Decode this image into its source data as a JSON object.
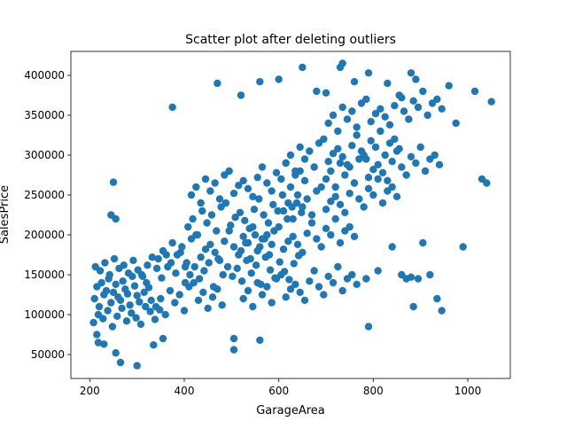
{
  "chart_data": {
    "type": "scatter",
    "title": "Scatter plot after deleting outliers",
    "xlabel": "GarageArea",
    "ylabel": "SalesPrice",
    "xlim": [
      160,
      1090
    ],
    "ylim": [
      20000,
      430000
    ],
    "x_ticks": [
      200,
      400,
      600,
      800,
      1000
    ],
    "y_ticks": [
      50000,
      100000,
      150000,
      200000,
      250000,
      300000,
      350000,
      400000
    ],
    "x_tick_labels": [
      "200",
      "400",
      "600",
      "800",
      "1000"
    ],
    "y_tick_labels": [
      "50000",
      "100000",
      "150000",
      "200000",
      "250000",
      "300000",
      "350000",
      "400000"
    ],
    "marker_color": "#1f77b4",
    "grid": false,
    "legend": "none",
    "x": [
      210,
      215,
      220,
      225,
      230,
      235,
      240,
      245,
      250,
      255,
      260,
      265,
      270,
      275,
      280,
      285,
      290,
      295,
      300,
      305,
      310,
      315,
      320,
      325,
      330,
      208,
      218,
      228,
      238,
      248,
      258,
      268,
      278,
      288,
      298,
      308,
      318,
      328,
      338,
      348,
      212,
      222,
      232,
      242,
      252,
      262,
      272,
      282,
      292,
      302,
      312,
      322,
      332,
      342,
      352,
      362,
      372,
      382,
      392,
      402,
      340,
      350,
      360,
      370,
      380,
      390,
      400,
      410,
      420,
      430,
      440,
      450,
      460,
      470,
      480,
      345,
      355,
      365,
      375,
      385,
      395,
      405,
      415,
      425,
      435,
      445,
      455,
      465,
      475,
      485,
      495,
      505,
      515,
      525,
      535,
      545,
      555,
      565,
      575,
      585,
      402,
      412,
      422,
      432,
      442,
      452,
      462,
      472,
      482,
      492,
      502,
      512,
      522,
      532,
      542,
      552,
      562,
      572,
      582,
      592,
      602,
      612,
      622,
      632,
      642,
      408,
      418,
      428,
      438,
      448,
      458,
      468,
      478,
      488,
      498,
      508,
      518,
      528,
      538,
      548,
      558,
      568,
      578,
      588,
      598,
      608,
      618,
      628,
      638,
      648,
      415,
      425,
      435,
      445,
      455,
      465,
      475,
      485,
      495,
      505,
      515,
      525,
      535,
      545,
      555,
      565,
      575,
      585,
      595,
      605,
      615,
      625,
      635,
      645,
      655,
      520,
      530,
      540,
      550,
      560,
      570,
      580,
      590,
      600,
      610,
      620,
      630,
      640,
      650,
      660,
      670,
      680,
      690,
      700,
      710,
      720,
      730,
      740,
      750,
      760,
      525,
      535,
      545,
      555,
      565,
      575,
      585,
      595,
      605,
      615,
      625,
      635,
      645,
      655,
      665,
      675,
      685,
      695,
      705,
      715,
      725,
      735,
      745,
      755,
      765,
      610,
      620,
      630,
      640,
      650,
      660,
      670,
      680,
      690,
      700,
      710,
      720,
      730,
      740,
      750,
      760,
      770,
      780,
      790,
      800,
      810,
      820,
      830,
      840,
      850,
      615,
      625,
      635,
      645,
      655,
      665,
      675,
      685,
      695,
      705,
      715,
      725,
      735,
      745,
      755,
      765,
      775,
      785,
      795,
      805,
      815,
      825,
      835,
      845,
      855,
      700,
      710,
      720,
      730,
      740,
      750,
      760,
      770,
      780,
      790,
      800,
      810,
      820,
      830,
      840,
      850,
      860,
      870,
      880,
      890,
      900,
      910,
      920,
      930,
      940,
      705,
      715,
      725,
      735,
      745,
      755,
      765,
      775,
      785,
      795,
      805,
      815,
      825,
      835,
      845,
      855,
      865,
      875,
      885,
      895,
      905,
      915,
      925,
      935,
      945,
      250,
      265,
      375,
      505,
      735,
      730,
      790,
      885,
      890,
      870,
      860,
      840,
      960,
      1015,
      1050,
      975,
      1030,
      1040,
      990,
      945,
      935,
      920,
      905,
      895,
      880,
      470,
      520,
      560,
      600,
      650,
      680,
      700,
      760,
      790,
      830,
      860,
      880,
      505,
      560,
      300,
      335,
      355,
      245,
      255,
      785,
      810,
      230,
      215,
      218,
      255
    ],
    "y": [
      120000,
      135000,
      110000,
      140000,
      125000,
      130000,
      145000,
      115000,
      128000,
      138000,
      122000,
      118000,
      142000,
      132000,
      126000,
      112000,
      148000,
      136000,
      124000,
      116000,
      150000,
      128000,
      140000,
      134000,
      118000,
      90000,
      100000,
      95000,
      105000,
      85000,
      98000,
      108000,
      92000,
      102000,
      96000,
      88000,
      110000,
      104000,
      94000,
      106000,
      160000,
      155000,
      165000,
      150000,
      170000,
      158000,
      162000,
      152000,
      168000,
      156000,
      148000,
      162000,
      172000,
      158000,
      146000,
      175000,
      165000,
      152000,
      178000,
      160000,
      110000,
      120000,
      100000,
      130000,
      115000,
      125000,
      105000,
      135000,
      140000,
      118000,
      128000,
      108000,
      122000,
      132000,
      112000,
      170000,
      180000,
      160000,
      190000,
      175000,
      185000,
      165000,
      195000,
      200000,
      172000,
      182000,
      188000,
      178000,
      168000,
      192000,
      205000,
      185000,
      175000,
      198000,
      190000,
      210000,
      180000,
      195000,
      200000,
      188000,
      140000,
      150000,
      160000,
      145000,
      155000,
      165000,
      135000,
      170000,
      150000,
      160000,
      148000,
      158000,
      142000,
      168000,
      152000,
      162000,
      138000,
      172000,
      156000,
      146000,
      166000,
      154000,
      144000,
      164000,
      174000,
      210000,
      220000,
      200000,
      230000,
      215000,
      225000,
      205000,
      235000,
      240000,
      212000,
      222000,
      228000,
      218000,
      208000,
      232000,
      245000,
      225000,
      215000,
      238000,
      230000,
      250000,
      220000,
      235000,
      240000,
      228000,
      250000,
      260000,
      240000,
      270000,
      255000,
      265000,
      245000,
      275000,
      280000,
      252000,
      262000,
      268000,
      258000,
      248000,
      272000,
      285000,
      265000,
      255000,
      278000,
      270000,
      290000,
      260000,
      275000,
      280000,
      268000,
      180000,
      190000,
      170000,
      200000,
      185000,
      195000,
      175000,
      205000,
      210000,
      182000,
      192000,
      198000,
      188000,
      178000,
      202000,
      215000,
      195000,
      185000,
      208000,
      200000,
      220000,
      190000,
      205000,
      210000,
      198000,
      120000,
      130000,
      110000,
      140000,
      125000,
      135000,
      115000,
      145000,
      150000,
      122000,
      132000,
      138000,
      128000,
      118000,
      142000,
      155000,
      135000,
      125000,
      148000,
      140000,
      160000,
      130000,
      145000,
      150000,
      138000,
      230000,
      240000,
      220000,
      250000,
      235000,
      245000,
      225000,
      255000,
      260000,
      232000,
      242000,
      248000,
      238000,
      228000,
      252000,
      265000,
      245000,
      235000,
      258000,
      250000,
      270000,
      240000,
      255000,
      260000,
      248000,
      290000,
      300000,
      280000,
      310000,
      295000,
      305000,
      285000,
      315000,
      320000,
      292000,
      302000,
      308000,
      298000,
      288000,
      312000,
      325000,
      305000,
      295000,
      318000,
      310000,
      330000,
      300000,
      315000,
      320000,
      308000,
      270000,
      280000,
      260000,
      290000,
      275000,
      285000,
      265000,
      295000,
      300000,
      272000,
      282000,
      288000,
      278000,
      268000,
      292000,
      305000,
      285000,
      275000,
      298000,
      290000,
      310000,
      280000,
      295000,
      300000,
      288000,
      340000,
      350000,
      330000,
      360000,
      345000,
      355000,
      335000,
      365000,
      370000,
      342000,
      352000,
      358000,
      348000,
      338000,
      362000,
      375000,
      355000,
      345000,
      368000,
      360000,
      380000,
      350000,
      365000,
      370000,
      358000,
      266000,
      40000,
      360000,
      56000,
      415000,
      410000,
      85000,
      110000,
      395000,
      145000,
      150000,
      185000,
      387000,
      380000,
      367000,
      340000,
      270000,
      265000,
      185000,
      105000,
      120000,
      150000,
      190000,
      145000,
      147000,
      390000,
      375000,
      392000,
      395000,
      410000,
      380000,
      378000,
      392000,
      403000,
      390000,
      372000,
      403000,
      70000,
      68000,
      36000,
      62000,
      70000,
      225000,
      220000,
      145000,
      155000,
      63000,
      75000,
      65000,
      52000
    ]
  }
}
